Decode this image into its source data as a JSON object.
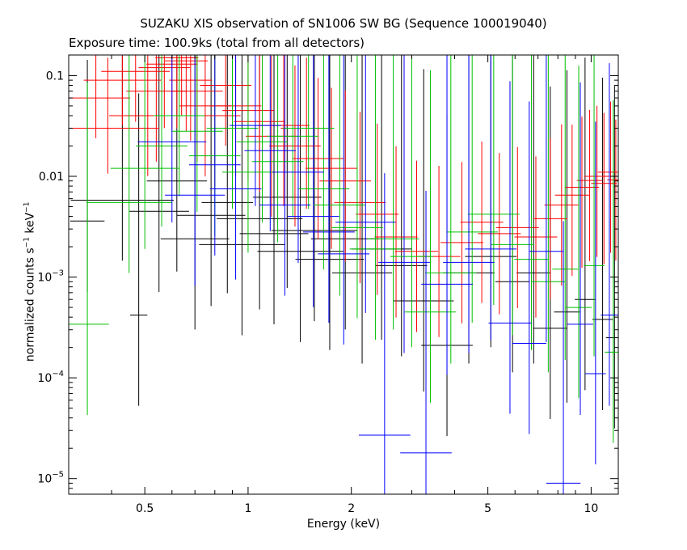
{
  "chart_data": {
    "type": "scatter",
    "title": "SUZAKU XIS observation of SN1006 SW BG (Sequence 100019040)",
    "subtitle": "Exposure time: 100.9ks (total from all detectors)",
    "xlabel": "Energy (keV)",
    "ylabel_main": "normalized counts s",
    "ylabel_sup1": "−1",
    "ylabel_mid": " keV",
    "ylabel_sup2": "−1",
    "x_scale": "log",
    "y_scale": "log",
    "xlim": [
      0.3,
      12
    ],
    "ylim": [
      7e-06,
      0.16
    ],
    "grid": false,
    "x_ticks": [
      {
        "value": 0.5,
        "label": "0.5"
      },
      {
        "value": 1,
        "label": "1"
      },
      {
        "value": 2,
        "label": "2"
      },
      {
        "value": 5,
        "label": "5"
      },
      {
        "value": 10,
        "label": "10"
      }
    ],
    "y_ticks": [
      {
        "value": 0.1,
        "label": "0.1",
        "base": "",
        "exp": ""
      },
      {
        "value": 0.01,
        "label": "0.01",
        "base": "",
        "exp": ""
      },
      {
        "value": 0.001,
        "label": "",
        "base": "10",
        "exp": "−3"
      },
      {
        "value": 0.0001,
        "label": "",
        "base": "10",
        "exp": "−4"
      },
      {
        "value": 1e-05,
        "label": "",
        "base": "10",
        "exp": "−5"
      }
    ],
    "series": [
      {
        "color": "#000000",
        "points": [
          [
            0.34,
            0.0036,
            0.2,
            0.7,
            1.6
          ],
          [
            0.43,
            0.0058,
            0.6,
            0.6,
            1.8
          ],
          [
            0.48,
            0.00042,
            0.1,
            0.9,
            2.2
          ],
          [
            0.55,
            0.0045,
            0.35,
            0.8,
            2.0
          ],
          [
            0.62,
            0.009,
            0.35,
            0.9,
            2.1
          ],
          [
            0.7,
            0.0024,
            0.4,
            0.9,
            2.2
          ],
          [
            0.78,
            0.0041,
            0.4,
            0.9,
            2.2
          ],
          [
            0.87,
            0.0055,
            0.3,
            0.9,
            2.3
          ],
          [
            0.96,
            0.0021,
            0.5,
            0.9,
            2.3
          ],
          [
            1.08,
            0.0038,
            0.5,
            0.9,
            2.3
          ],
          [
            1.19,
            0.0027,
            0.4,
            0.9,
            2.3
          ],
          [
            1.3,
            0.0062,
            0.4,
            0.9,
            2.4
          ],
          [
            1.42,
            0.0018,
            0.5,
            0.9,
            2.3
          ],
          [
            1.56,
            0.0029,
            0.5,
            0.9,
            2.4
          ],
          [
            1.73,
            0.0015,
            0.4,
            0.9,
            2.3
          ],
          [
            1.92,
            0.0024,
            0.4,
            0.9,
            2.3
          ],
          [
            2.15,
            0.0011,
            0.35,
            0.9,
            2.2
          ],
          [
            2.45,
            0.0019,
            0.35,
            0.9,
            2.3
          ],
          [
            2.8,
            0.0013,
            0.3,
            0.9,
            2.2
          ],
          [
            3.25,
            0.00058,
            0.35,
            0.9,
            2.3
          ],
          [
            3.8,
            0.00021,
            0.3,
            0.9,
            2.3
          ],
          [
            4.4,
            0.0011,
            0.3,
            0.9,
            2.3
          ],
          [
            5.1,
            0.0016,
            0.3,
            0.9,
            2.4
          ],
          [
            5.9,
            0.0009,
            0.2,
            0.9,
            2.3
          ],
          [
            6.8,
            0.0011,
            0.2,
            0.9,
            2.3
          ],
          [
            7.6,
            0.00031,
            0.2,
            0.9,
            2.4
          ],
          [
            8.5,
            0.00045,
            0.15,
            0.9,
            2.4
          ],
          [
            9.6,
            0.0006,
            0.12,
            0.9,
            2.4
          ],
          [
            10.8,
            0.00038,
            0.12,
            0.9,
            2.4
          ],
          [
            11.7,
            0.00025,
            0.1,
            0.9,
            2.5
          ]
        ]
      },
      {
        "color": "#ff0000",
        "points": [
          [
            0.36,
            0.06,
            0.4,
            0.4,
            0.7
          ],
          [
            0.39,
            0.03,
            0.6,
            0.45,
            0.7
          ],
          [
            0.43,
            0.09,
            0.45,
            0.45,
            0.6
          ],
          [
            0.47,
            0.11,
            0.4,
            0.5,
            0.5
          ],
          [
            0.51,
            0.04,
            0.45,
            0.6,
            0.7
          ],
          [
            0.54,
            0.07,
            0.35,
            0.7,
            0.6
          ],
          [
            0.57,
            0.12,
            0.3,
            0.6,
            0.4
          ],
          [
            0.6,
            0.13,
            0.3,
            0.65,
            0.35
          ],
          [
            0.62,
            0.15,
            0.25,
            0.7,
            0.3
          ],
          [
            0.64,
            0.16,
            0.25,
            0.6,
            0.3
          ],
          [
            0.66,
            0.14,
            0.25,
            0.7,
            0.3
          ],
          [
            0.68,
            0.09,
            0.25,
            0.6,
            0.4
          ],
          [
            0.71,
            0.07,
            0.3,
            0.7,
            0.5
          ],
          [
            0.75,
            0.05,
            0.3,
            0.7,
            0.6
          ],
          [
            0.8,
            0.04,
            0.3,
            0.7,
            0.7
          ],
          [
            0.86,
            0.08,
            0.3,
            0.6,
            0.6
          ],
          [
            0.92,
            0.05,
            0.3,
            0.7,
            0.7
          ],
          [
            1.0,
            0.045,
            0.3,
            0.7,
            0.7
          ],
          [
            1.08,
            0.035,
            0.3,
            0.7,
            0.7
          ],
          [
            1.17,
            0.025,
            0.3,
            0.8,
            0.8
          ],
          [
            1.27,
            0.032,
            0.3,
            0.8,
            0.8
          ],
          [
            1.37,
            0.02,
            0.3,
            0.8,
            0.8
          ],
          [
            1.48,
            0.03,
            0.3,
            0.8,
            0.7
          ],
          [
            1.6,
            0.015,
            0.3,
            0.8,
            0.8
          ],
          [
            1.75,
            0.012,
            0.3,
            0.8,
            0.8
          ],
          [
            1.92,
            0.009,
            0.3,
            0.8,
            0.9
          ],
          [
            2.12,
            0.0055,
            0.3,
            0.8,
            0.9
          ],
          [
            2.38,
            0.0042,
            0.25,
            0.8,
            0.9
          ],
          [
            2.7,
            0.0025,
            0.25,
            0.8,
            0.9
          ],
          [
            3.1,
            0.0018,
            0.25,
            0.8,
            0.9
          ],
          [
            3.6,
            0.0016,
            0.25,
            0.8,
            0.9
          ],
          [
            4.2,
            0.0022,
            0.25,
            0.8,
            0.8
          ],
          [
            4.8,
            0.0035,
            0.25,
            0.8,
            0.8
          ],
          [
            5.4,
            0.0027,
            0.25,
            0.8,
            0.8
          ],
          [
            6.1,
            0.0031,
            0.25,
            0.8,
            0.8
          ],
          [
            6.9,
            0.0025,
            0.25,
            0.8,
            0.8
          ],
          [
            7.6,
            0.0038,
            0.2,
            0.8,
            0.8
          ],
          [
            8.2,
            0.0052,
            0.2,
            0.8,
            0.8
          ],
          [
            8.8,
            0.0065,
            0.2,
            0.8,
            0.7
          ],
          [
            9.4,
            0.0078,
            0.2,
            0.8,
            0.7
          ],
          [
            9.9,
            0.0091,
            0.15,
            0.8,
            0.7
          ],
          [
            10.4,
            0.01,
            0.15,
            0.8,
            0.7
          ],
          [
            10.9,
            0.0085,
            0.15,
            0.8,
            0.7
          ],
          [
            11.4,
            0.011,
            0.15,
            0.8,
            0.7
          ],
          [
            11.8,
            0.0092,
            0.1,
            0.8,
            0.6
          ]
        ]
      },
      {
        "color": "#00c000",
        "points": [
          [
            0.34,
            0.00034,
            0.25,
            0.9,
            2.4
          ],
          [
            0.45,
            0.0055,
            0.5,
            0.7,
            1.9
          ],
          [
            0.5,
            0.012,
            0.4,
            0.8,
            1.8
          ],
          [
            0.56,
            0.02,
            0.3,
            0.8,
            1.9
          ],
          [
            0.63,
            0.04,
            0.3,
            0.8,
            1.6
          ],
          [
            0.71,
            0.028,
            0.3,
            0.8,
            1.7
          ],
          [
            0.8,
            0.016,
            0.3,
            0.8,
            1.9
          ],
          [
            0.9,
            0.03,
            0.3,
            0.8,
            1.8
          ],
          [
            1.0,
            0.011,
            0.3,
            0.8,
            2.0
          ],
          [
            1.1,
            0.022,
            0.3,
            0.8,
            1.9
          ],
          [
            1.22,
            0.014,
            0.3,
            0.8,
            2.0
          ],
          [
            1.35,
            0.025,
            0.3,
            0.8,
            1.9
          ],
          [
            1.5,
            0.03,
            0.3,
            0.8,
            1.8
          ],
          [
            1.66,
            0.0075,
            0.3,
            0.8,
            2.1
          ],
          [
            1.85,
            0.0052,
            0.3,
            0.9,
            2.2
          ],
          [
            2.08,
            0.0031,
            0.3,
            0.9,
            2.2
          ],
          [
            2.35,
            0.0019,
            0.3,
            0.9,
            2.3
          ],
          [
            2.65,
            0.0024,
            0.3,
            0.9,
            2.3
          ],
          [
            3.0,
            0.0016,
            0.25,
            0.9,
            2.3
          ],
          [
            3.4,
            0.00045,
            0.3,
            0.9,
            2.4
          ],
          [
            3.9,
            0.0011,
            0.3,
            0.9,
            2.3
          ],
          [
            4.5,
            0.0028,
            0.3,
            0.9,
            2.3
          ],
          [
            5.2,
            0.0042,
            0.3,
            0.9,
            2.2
          ],
          [
            5.9,
            0.0021,
            0.25,
            0.9,
            2.3
          ],
          [
            6.7,
            0.0015,
            0.2,
            0.9,
            2.3
          ],
          [
            7.5,
            0.0009,
            0.2,
            0.9,
            2.4
          ],
          [
            8.4,
            0.0012,
            0.15,
            0.9,
            2.4
          ],
          [
            9.2,
            0.0005,
            0.15,
            0.9,
            2.4
          ],
          [
            10.2,
            0.0013,
            0.12,
            0.9,
            2.4
          ],
          [
            11.6,
            0.00018,
            0.1,
            0.9,
            2.5
          ]
        ]
      },
      {
        "color": "#0000ff",
        "points": [
          [
            0.6,
            0.022,
            0.4,
            0.8,
            1.8
          ],
          [
            0.7,
            0.0065,
            0.35,
            0.9,
            2.1
          ],
          [
            0.8,
            0.013,
            0.3,
            0.9,
            2.0
          ],
          [
            0.92,
            0.0075,
            0.3,
            0.9,
            2.1
          ],
          [
            1.05,
            0.032,
            0.3,
            0.8,
            1.8
          ],
          [
            1.16,
            0.018,
            0.3,
            0.8,
            1.9
          ],
          [
            1.28,
            0.0052,
            0.3,
            0.9,
            2.2
          ],
          [
            1.4,
            0.011,
            0.3,
            0.9,
            2.1
          ],
          [
            1.55,
            0.004,
            0.3,
            0.9,
            2.2
          ],
          [
            1.72,
            0.0028,
            0.3,
            0.9,
            2.3
          ],
          [
            1.9,
            0.0017,
            0.3,
            0.9,
            2.3
          ],
          [
            2.2,
            0.0035,
            0.35,
            0.9,
            2.2
          ],
          [
            2.5,
            2.7e-05,
            0.3,
            0.9,
            2.6
          ],
          [
            2.85,
            0.0014,
            0.3,
            0.9,
            2.3
          ],
          [
            3.3,
            1.8e-05,
            0.3,
            0.9,
            2.6
          ],
          [
            3.8,
            0.00085,
            0.3,
            0.9,
            2.3
          ],
          [
            4.4,
            0.0014,
            0.3,
            0.9,
            2.3
          ],
          [
            5.1,
            0.0019,
            0.3,
            0.9,
            2.3
          ],
          [
            5.8,
            0.00035,
            0.25,
            0.9,
            2.4
          ],
          [
            6.6,
            0.00022,
            0.2,
            0.9,
            2.4
          ],
          [
            7.4,
            0.0018,
            0.2,
            0.9,
            2.3
          ],
          [
            8.3,
            9e-06,
            0.2,
            0.9,
            2.6
          ],
          [
            9.3,
            0.00034,
            0.15,
            0.9,
            2.4
          ],
          [
            10.3,
            0.00011,
            0.12,
            0.9,
            2.5
          ],
          [
            11.3,
            0.00042,
            0.1,
            0.9,
            2.5
          ]
        ]
      }
    ]
  }
}
